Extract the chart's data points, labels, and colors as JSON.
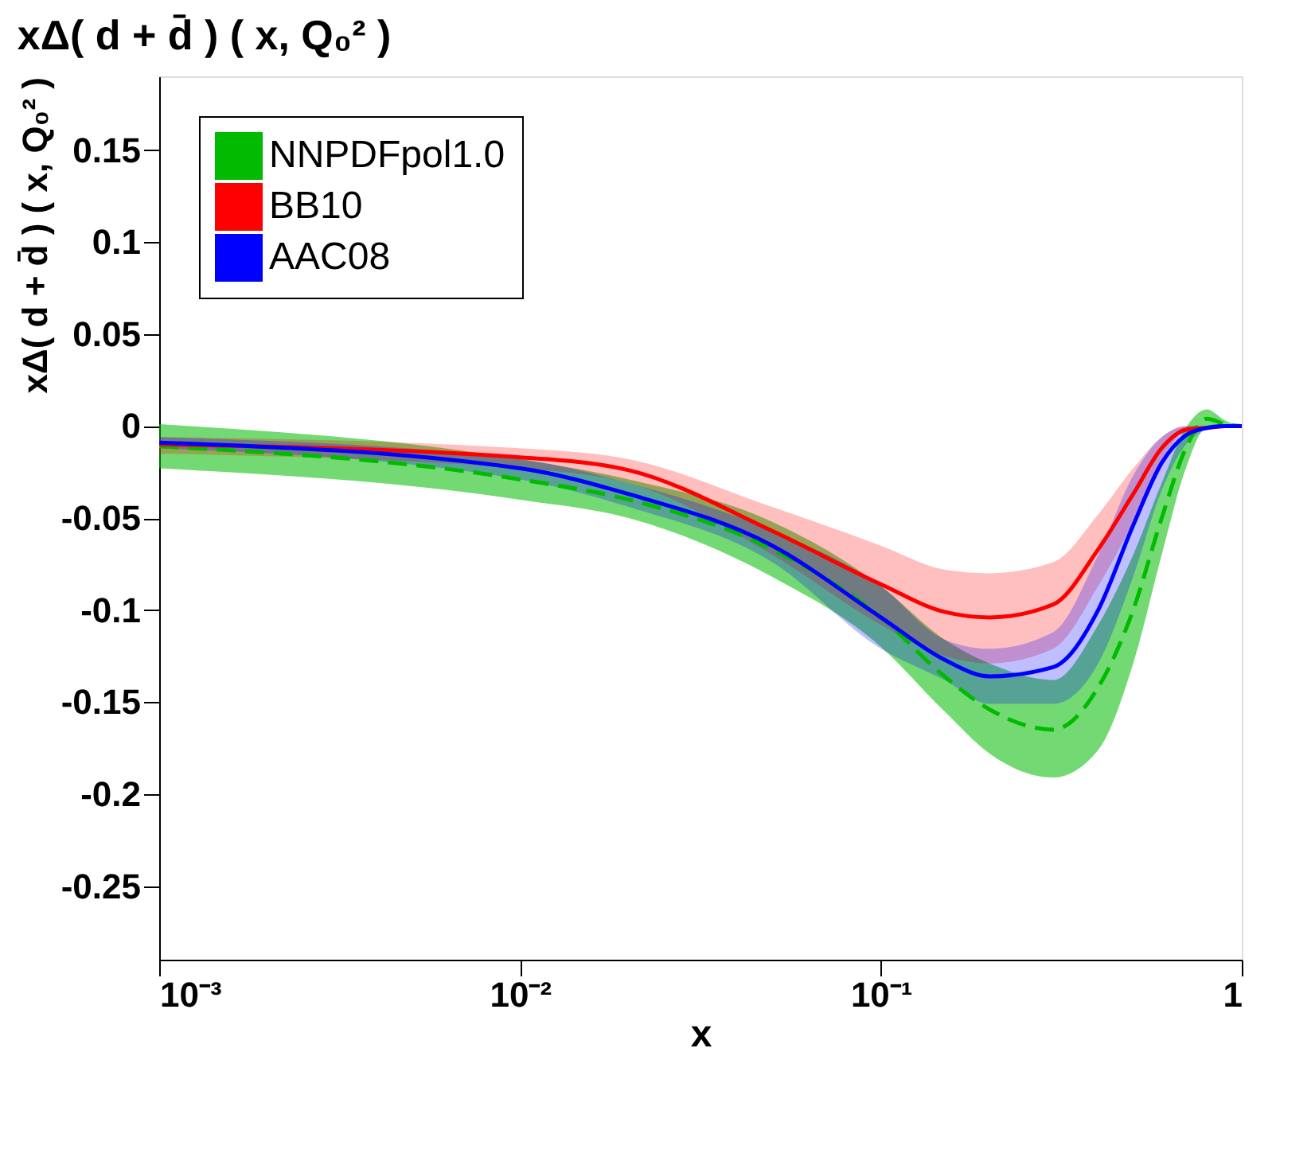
{
  "chart_data": {
    "type": "line",
    "title": "xΔ( d + d̄ ) ( x, Q₀² )",
    "xlabel": "x",
    "ylabel": "xΔ( d + d̄ ) ( x, Q₀² )",
    "log": "x",
    "xlim": [
      0.001,
      1
    ],
    "xticks": [
      {
        "value": 0.001,
        "label": "10⁻³"
      },
      {
        "value": 0.01,
        "label": "10⁻²"
      },
      {
        "value": 0.1,
        "label": "10⁻¹"
      },
      1
    ],
    "ylim": [
      -0.29,
      0.19
    ],
    "yticks": [
      -0.25,
      -0.2,
      -0.15,
      -0.1,
      -0.05,
      0,
      0.05,
      0.1,
      0.15
    ],
    "grid": false,
    "legend": "top left",
    "x": [
      0.001,
      0.01,
      0.02,
      0.05,
      0.1,
      0.15,
      0.2,
      0.3,
      0.4,
      0.5,
      0.6,
      0.7,
      0.8,
      0.9,
      1.0
    ],
    "series": [
      {
        "name": "NNPDFpol1.0",
        "color": "#00bb00",
        "line_style": "dashed",
        "values": [
          -0.011,
          -0.029,
          -0.04,
          -0.067,
          -0.104,
          -0.136,
          -0.154,
          -0.165,
          -0.142,
          -0.1,
          -0.05,
          -0.012,
          0.004,
          0.001,
          0
        ],
        "lower": [
          -0.023,
          -0.04,
          -0.05,
          -0.082,
          -0.12,
          -0.155,
          -0.178,
          -0.191,
          -0.176,
          -0.129,
          -0.07,
          -0.023,
          -0.001,
          -0.001,
          0
        ],
        "upper": [
          0.001,
          -0.018,
          -0.029,
          -0.052,
          -0.087,
          -0.116,
          -0.129,
          -0.138,
          -0.108,
          -0.07,
          -0.031,
          -0.001,
          0.009,
          0.003,
          0
        ]
      },
      {
        "name": "BB10",
        "color": "#ff0000",
        "line_style": "solid",
        "values": [
          -0.01,
          -0.017,
          -0.024,
          -0.057,
          -0.086,
          -0.101,
          -0.104,
          -0.097,
          -0.067,
          -0.037,
          -0.012,
          -0.002,
          -0.001,
          0,
          0
        ],
        "lower": [
          -0.015,
          -0.023,
          -0.031,
          -0.07,
          -0.108,
          -0.125,
          -0.129,
          -0.121,
          -0.087,
          -0.052,
          -0.018,
          -0.003,
          -0.001,
          0,
          0
        ],
        "upper": [
          -0.006,
          -0.012,
          -0.018,
          -0.044,
          -0.065,
          -0.078,
          -0.08,
          -0.074,
          -0.048,
          -0.023,
          -0.006,
          0,
          0,
          0,
          0
        ]
      },
      {
        "name": "AAC08",
        "color": "#0000ff",
        "line_style": "solid",
        "values": [
          -0.009,
          -0.023,
          -0.037,
          -0.065,
          -0.104,
          -0.127,
          -0.136,
          -0.131,
          -0.1,
          -0.054,
          -0.02,
          -0.005,
          -0.001,
          0,
          0
        ],
        "lower": [
          -0.012,
          -0.029,
          -0.044,
          -0.074,
          -0.121,
          -0.138,
          -0.151,
          -0.151,
          -0.129,
          -0.082,
          -0.035,
          -0.01,
          -0.002,
          0,
          0
        ],
        "upper": [
          -0.006,
          -0.018,
          -0.031,
          -0.057,
          -0.087,
          -0.116,
          -0.121,
          -0.112,
          -0.07,
          -0.027,
          -0.006,
          0,
          0,
          0,
          0
        ]
      }
    ]
  }
}
